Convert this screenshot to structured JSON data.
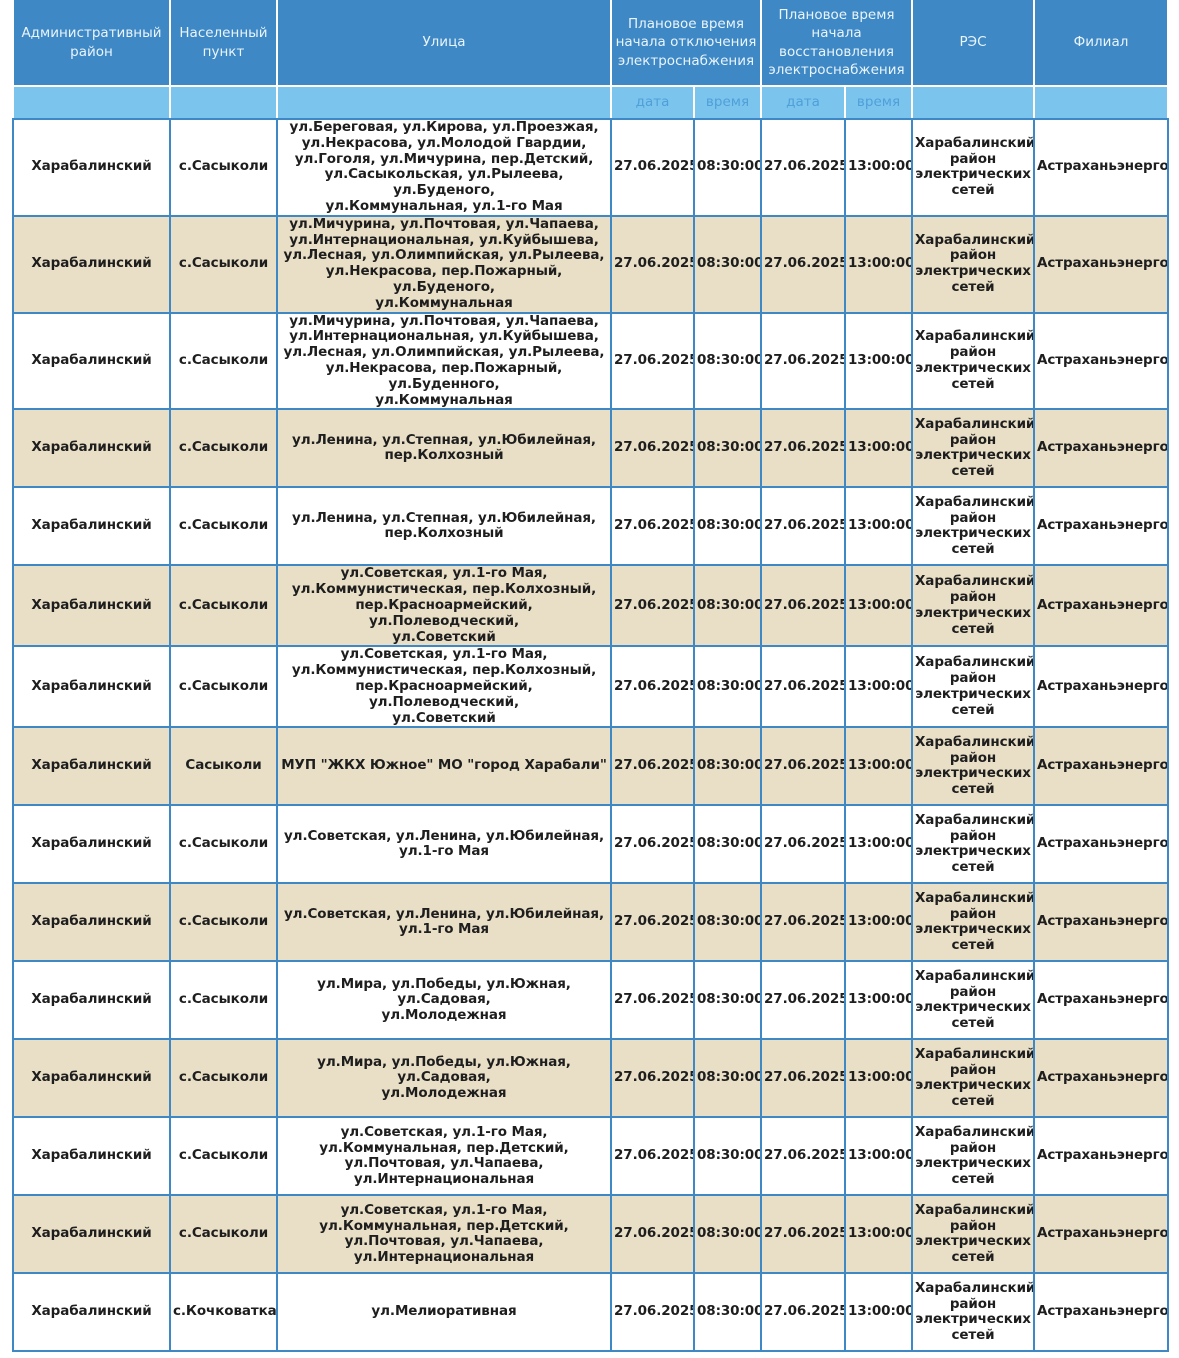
{
  "header": {
    "district": "Административный район",
    "locality": "Населенный пункт",
    "street": "Улица",
    "off_time": "Плановое время начала отключения электроснабжения",
    "on_time": "Плановое время начала восстановления электроснабжения",
    "res": "РЭС",
    "branch": "Филиал",
    "date": "дата",
    "time": "время"
  },
  "colors": {
    "header": "#3d88c5",
    "subheader": "#7bc4ee",
    "alt_row": "#e9dfc6"
  },
  "rows": [
    {
      "district": "Харабалинский",
      "locality": "с.Сасыколи",
      "street": "ул.Береговая, ул.Кирова, ул.Проезжая,\nул.Некрасова, ул.Молодой Гвардии,\nул.Гоголя, ул.Мичурина, пер.Детский,\nул.Сасыкольская, ул.Рылеева, ул.Буденого,\nул.Коммунальная, ул.1-го Мая",
      "off_date": "27.06.2025",
      "off_time": "08:30:00",
      "on_date": "27.06.2025",
      "on_time": "13:00:00",
      "res": "Харабалинский район электрических сетей",
      "branch": "Астраханьэнерго"
    },
    {
      "district": "Харабалинский",
      "locality": "с.Сасыколи",
      "street": "ул.Мичурина, ул.Почтовая, ул.Чапаева,\nул.Интернациональная, ул.Куйбышева,\nул.Лесная, ул.Олимпийская, ул.Рылеева,\nул.Некрасова, пер.Пожарный, ул.Буденого,\nул.Коммунальная",
      "off_date": "27.06.2025",
      "off_time": "08:30:00",
      "on_date": "27.06.2025",
      "on_time": "13:00:00",
      "res": "Харабалинский район электрических сетей",
      "branch": "Астраханьэнерго"
    },
    {
      "district": "Харабалинский",
      "locality": "с.Сасыколи",
      "street": "ул.Мичурина, ул.Почтовая, ул.Чапаева,\nул.Интернациональная, ул.Куйбышева,\nул.Лесная, ул.Олимпийская, ул.Рылеева,\nул.Некрасова, пер.Пожарный, ул.Буденного,\nул.Коммунальная",
      "off_date": "27.06.2025",
      "off_time": "08:30:00",
      "on_date": "27.06.2025",
      "on_time": "13:00:00",
      "res": "Харабалинский район электрических сетей",
      "branch": "Астраханьэнерго"
    },
    {
      "district": "Харабалинский",
      "locality": "с.Сасыколи",
      "street": "ул.Ленина, ул.Степная, ул.Юбилейная,\nпер.Колхозный",
      "off_date": "27.06.2025",
      "off_time": "08:30:00",
      "on_date": "27.06.2025",
      "on_time": "13:00:00",
      "res": "Харабалинский район электрических сетей",
      "branch": "Астраханьэнерго"
    },
    {
      "district": "Харабалинский",
      "locality": "с.Сасыколи",
      "street": "ул.Ленина, ул.Степная, ул.Юбилейная,\nпер.Колхозный",
      "off_date": "27.06.2025",
      "off_time": "08:30:00",
      "on_date": "27.06.2025",
      "on_time": "13:00:00",
      "res": "Харабалинский район электрических сетей",
      "branch": "Астраханьэнерго"
    },
    {
      "district": "Харабалинский",
      "locality": "с.Сасыколи",
      "street": "ул.Советская, ул.1-го Мая,\nул.Коммунистическая, пер.Колхозный,\nпер.Красноармейский, ул.Полеводческий,\nул.Советский",
      "off_date": "27.06.2025",
      "off_time": "08:30:00",
      "on_date": "27.06.2025",
      "on_time": "13:00:00",
      "res": "Харабалинский район электрических сетей",
      "branch": "Астраханьэнерго"
    },
    {
      "district": "Харабалинский",
      "locality": "с.Сасыколи",
      "street": "ул.Советская, ул.1-го Мая,\nул.Коммунистическая, пер.Колхозный,\nпер.Красноармейский, ул.Полеводческий,\nул.Советский",
      "off_date": "27.06.2025",
      "off_time": "08:30:00",
      "on_date": "27.06.2025",
      "on_time": "13:00:00",
      "res": "Харабалинский район электрических сетей",
      "branch": "Астраханьэнерго"
    },
    {
      "district": "Харабалинский",
      "locality": "Сасыколи",
      "street": "МУП \"ЖКХ Южное\" МО \"город Харабали\"",
      "off_date": "27.06.2025",
      "off_time": "08:30:00",
      "on_date": "27.06.2025",
      "on_time": "13:00:00",
      "res": "Харабалинский район электрических сетей",
      "branch": "Астраханьэнерго"
    },
    {
      "district": "Харабалинский",
      "locality": "с.Сасыколи",
      "street": "ул.Советская, ул.Ленина, ул.Юбилейная,\nул.1-го Мая",
      "off_date": "27.06.2025",
      "off_time": "08:30:00",
      "on_date": "27.06.2025",
      "on_time": "13:00:00",
      "res": "Харабалинский район электрических сетей",
      "branch": "Астраханьэнерго"
    },
    {
      "district": "Харабалинский",
      "locality": "с.Сасыколи",
      "street": "ул.Советская, ул.Ленина, ул.Юбилейная,\nул.1-го Мая",
      "off_date": "27.06.2025",
      "off_time": "08:30:00",
      "on_date": "27.06.2025",
      "on_time": "13:00:00",
      "res": "Харабалинский район электрических сетей",
      "branch": "Астраханьэнерго"
    },
    {
      "district": "Харабалинский",
      "locality": "с.Сасыколи",
      "street": "ул.Мира, ул.Победы, ул.Южная, ул.Садовая,\nул.Молодежная",
      "off_date": "27.06.2025",
      "off_time": "08:30:00",
      "on_date": "27.06.2025",
      "on_time": "13:00:00",
      "res": "Харабалинский район электрических сетей",
      "branch": "Астраханьэнерго"
    },
    {
      "district": "Харабалинский",
      "locality": "с.Сасыколи",
      "street": "ул.Мира, ул.Победы, ул.Южная, ул.Садовая,\nул.Молодежная",
      "off_date": "27.06.2025",
      "off_time": "08:30:00",
      "on_date": "27.06.2025",
      "on_time": "13:00:00",
      "res": "Харабалинский район электрических сетей",
      "branch": "Астраханьэнерго"
    },
    {
      "district": "Харабалинский",
      "locality": "с.Сасыколи",
      "street": "ул.Советская, ул.1-го Мая,\nул.Коммунальная, пер.Детский,\nул.Почтовая, ул.Чапаева,\nул.Интернациональная",
      "off_date": "27.06.2025",
      "off_time": "08:30:00",
      "on_date": "27.06.2025",
      "on_time": "13:00:00",
      "res": "Харабалинский район электрических сетей",
      "branch": "Астраханьэнерго"
    },
    {
      "district": "Харабалинский",
      "locality": "с.Сасыколи",
      "street": "ул.Советская, ул.1-го Мая,\nул.Коммунальная, пер.Детский,\nул.Почтовая, ул.Чапаева,\nул.Интернациональная",
      "off_date": "27.06.2025",
      "off_time": "08:30:00",
      "on_date": "27.06.2025",
      "on_time": "13:00:00",
      "res": "Харабалинский район электрических сетей",
      "branch": "Астраханьэнерго"
    },
    {
      "district": "Харабалинский",
      "locality": "с.Кочковатка",
      "street": "ул.Мелиоративная",
      "off_date": "27.06.2025",
      "off_time": "08:30:00",
      "on_date": "27.06.2025",
      "on_time": "13:00:00",
      "res": "Харабалинский район электрических сетей",
      "branch": "Астраханьэнерго"
    }
  ]
}
